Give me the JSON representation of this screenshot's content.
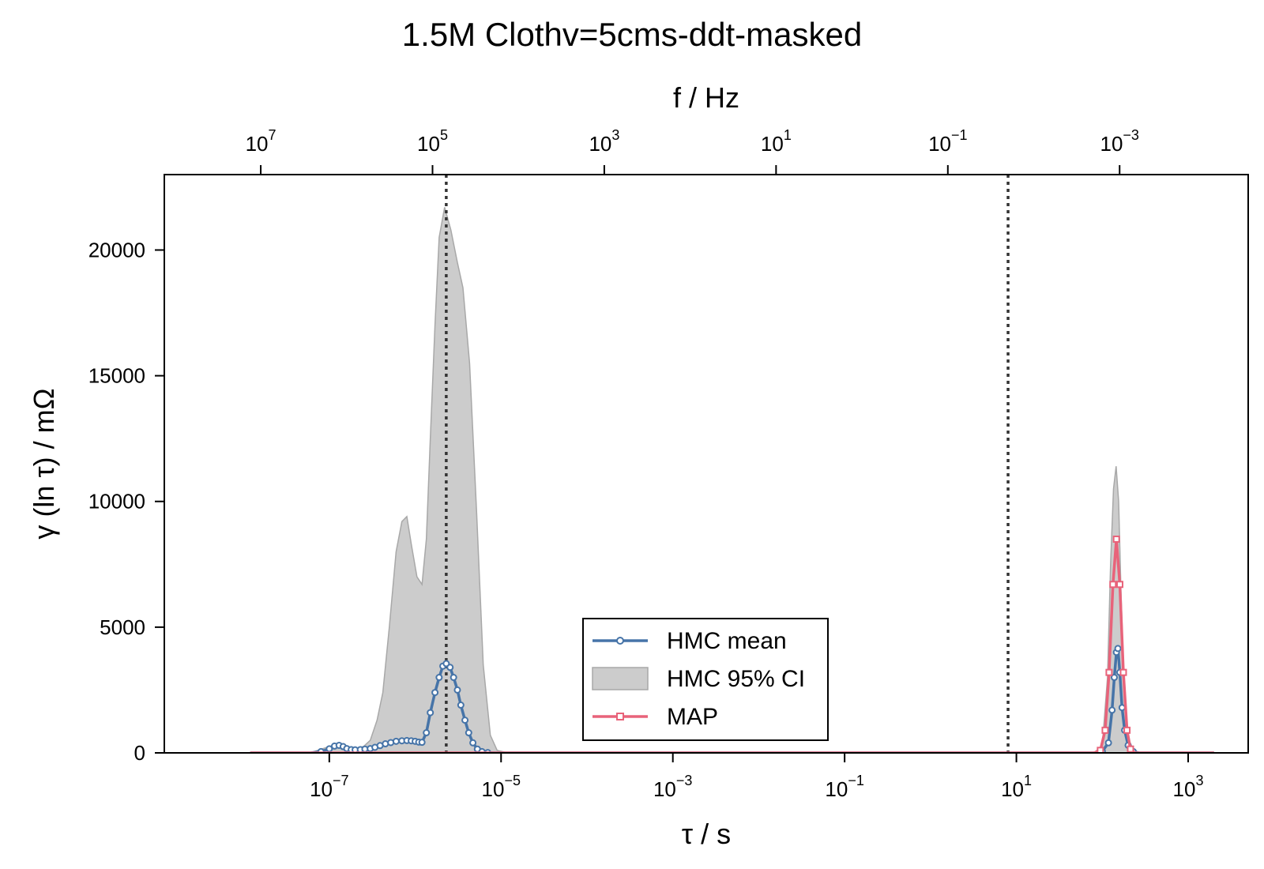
{
  "chart_data": {
    "type": "line",
    "title": "1.5M Clothv=5cms-ddt-masked",
    "xlabel": "τ / s",
    "ylabel": "γ (ln τ) / mΩ",
    "top_xlabel": "f / Hz",
    "x_scale": "log",
    "xlim": [
      1.2e-09,
      5000
    ],
    "ylim": [
      0,
      23000
    ],
    "x_ticks": [
      {
        "value": 1e-07,
        "base": "10",
        "exp": "−7"
      },
      {
        "value": 1e-05,
        "base": "10",
        "exp": "−5"
      },
      {
        "value": 0.001,
        "base": "10",
        "exp": "−3"
      },
      {
        "value": 0.1,
        "base": "10",
        "exp": "−1"
      },
      {
        "value": 10,
        "base": "10",
        "exp": "1"
      },
      {
        "value": 1000,
        "base": "10",
        "exp": "3"
      }
    ],
    "top_ticks": [
      {
        "freq": 10000000.0,
        "base": "10",
        "exp": "7"
      },
      {
        "freq": 100000.0,
        "base": "10",
        "exp": "5"
      },
      {
        "freq": 1000.0,
        "base": "10",
        "exp": "3"
      },
      {
        "freq": 10,
        "base": "10",
        "exp": "1"
      },
      {
        "freq": 0.1,
        "base": "10",
        "exp": "−1"
      },
      {
        "freq": 0.001,
        "base": "10",
        "exp": "−3"
      }
    ],
    "y_ticks": [
      {
        "value": 0,
        "label": "0"
      },
      {
        "value": 5000,
        "label": "5000"
      },
      {
        "value": 10000,
        "label": "10000"
      },
      {
        "value": 15000,
        "label": "15000"
      },
      {
        "value": 20000,
        "label": "20000"
      }
    ],
    "vlines": [
      2.3e-06,
      8.0
    ],
    "legend": {
      "position": "lower-center",
      "entries": [
        {
          "label": "HMC mean",
          "kind": "line-circle",
          "color": "#4674a8"
        },
        {
          "label": "HMC 95% CI",
          "kind": "fill",
          "color": "#cccccc"
        },
        {
          "label": "MAP",
          "kind": "line-square",
          "color": "#e8637a"
        }
      ]
    },
    "colors": {
      "hmc_mean": "#4674a8",
      "ci_fill": "#cccccc",
      "ci_edge": "#a8a8a8",
      "map": "#e8637a",
      "vline": "#333333"
    },
    "ci_band": [
      [
        1.2e-08,
        0
      ],
      [
        6e-08,
        0
      ],
      [
        1e-07,
        250
      ],
      [
        1.3e-07,
        380
      ],
      [
        1.6e-07,
        200
      ],
      [
        2e-07,
        180
      ],
      [
        2.5e-07,
        250
      ],
      [
        3e-07,
        500
      ],
      [
        3.6e-07,
        1300
      ],
      [
        4.2e-07,
        2400
      ],
      [
        5e-07,
        5000
      ],
      [
        6e-07,
        8000
      ],
      [
        7e-07,
        9200
      ],
      [
        8e-07,
        9400
      ],
      [
        9e-07,
        8300
      ],
      [
        1.05e-06,
        7000
      ],
      [
        1.2e-06,
        6700
      ],
      [
        1.35e-06,
        8500
      ],
      [
        1.5e-06,
        12500
      ],
      [
        1.7e-06,
        17000
      ],
      [
        1.9e-06,
        20500
      ],
      [
        2.2e-06,
        21700
      ],
      [
        2.6e-06,
        20800
      ],
      [
        3.1e-06,
        19500
      ],
      [
        3.6e-06,
        18500
      ],
      [
        4.3e-06,
        15500
      ],
      [
        5.2e-06,
        9500
      ],
      [
        6.2e-06,
        3500
      ],
      [
        7.5e-06,
        700
      ],
      [
        9e-06,
        100
      ],
      [
        1.2e-05,
        0
      ],
      [
        80,
        0
      ],
      [
        100,
        300
      ],
      [
        115,
        3000
      ],
      [
        125,
        7500
      ],
      [
        135,
        10500
      ],
      [
        145,
        11400
      ],
      [
        155,
        10000
      ],
      [
        165,
        6500
      ],
      [
        180,
        2500
      ],
      [
        200,
        600
      ],
      [
        230,
        100
      ],
      [
        270,
        0
      ],
      [
        2000,
        0
      ]
    ],
    "series": [
      {
        "name": "HMC mean",
        "color": "#4674a8",
        "marker": "circle",
        "points": [
          [
            1.2e-08,
            0
          ],
          [
            6e-08,
            0
          ],
          [
            8e-08,
            50
          ],
          [
            1e-07,
            160
          ],
          [
            1.15e-07,
            270
          ],
          [
            1.3e-07,
            300
          ],
          [
            1.45e-07,
            250
          ],
          [
            1.6e-07,
            170
          ],
          [
            1.8e-07,
            130
          ],
          [
            2e-07,
            120
          ],
          [
            2.3e-07,
            130
          ],
          [
            2.6e-07,
            150
          ],
          [
            3e-07,
            170
          ],
          [
            3.4e-07,
            220
          ],
          [
            3.9e-07,
            290
          ],
          [
            4.5e-07,
            360
          ],
          [
            5.2e-07,
            410
          ],
          [
            6e-07,
            460
          ],
          [
            7e-07,
            480
          ],
          [
            8e-07,
            490
          ],
          [
            9e-07,
            480
          ],
          [
            1e-06,
            460
          ],
          [
            1.1e-06,
            430
          ],
          [
            1.2e-06,
            420
          ],
          [
            1.35e-06,
            800
          ],
          [
            1.5e-06,
            1600
          ],
          [
            1.7e-06,
            2400
          ],
          [
            1.9e-06,
            3000
          ],
          [
            2.1e-06,
            3450
          ],
          [
            2.3e-06,
            3550
          ],
          [
            2.55e-06,
            3400
          ],
          [
            2.8e-06,
            3000
          ],
          [
            3.1e-06,
            2500
          ],
          [
            3.4e-06,
            1900
          ],
          [
            3.8e-06,
            1300
          ],
          [
            4.2e-06,
            800
          ],
          [
            4.7e-06,
            400
          ],
          [
            5.3e-06,
            150
          ],
          [
            6e-06,
            50
          ],
          [
            7e-06,
            10
          ],
          [
            9e-06,
            0
          ],
          [
            80,
            0
          ],
          [
            100,
            60
          ],
          [
            118,
            400
          ],
          [
            130,
            1700
          ],
          [
            138,
            3000
          ],
          [
            146,
            4000
          ],
          [
            152,
            4150
          ],
          [
            160,
            3200
          ],
          [
            170,
            1800
          ],
          [
            182,
            900
          ],
          [
            200,
            300
          ],
          [
            230,
            50
          ],
          [
            270,
            0
          ],
          [
            2000,
            0
          ]
        ]
      },
      {
        "name": "MAP",
        "color": "#e8637a",
        "marker": "square",
        "points": [
          [
            1.2e-08,
            0
          ],
          [
            80,
            0
          ],
          [
            95,
            100
          ],
          [
            108,
            900
          ],
          [
            120,
            3200
          ],
          [
            133,
            6700
          ],
          [
            146,
            8500
          ],
          [
            160,
            6700
          ],
          [
            176,
            3200
          ],
          [
            194,
            900
          ],
          [
            213,
            150
          ],
          [
            240,
            0
          ],
          [
            2000,
            0
          ]
        ]
      }
    ]
  }
}
